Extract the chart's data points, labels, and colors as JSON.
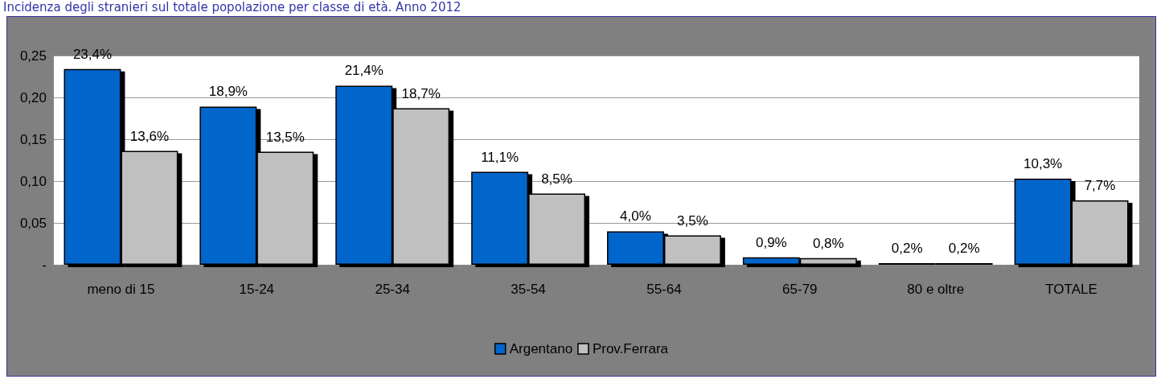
{
  "chart_data": {
    "type": "bar",
    "title": "Incidenza degli stranieri sul totale popolazione per classe di età. Anno 2012",
    "categories": [
      "meno di 15",
      "15-24",
      "25-34",
      "35-54",
      "55-64",
      "65-79",
      "80 e oltre",
      "TOTALE"
    ],
    "series": [
      {
        "name": "Argentano",
        "color": "#0066cc",
        "values": [
          0.234,
          0.189,
          0.214,
          0.111,
          0.04,
          0.009,
          0.002,
          0.103
        ],
        "value_labels": [
          "23,4%",
          "18,9%",
          "21,4%",
          "11,1%",
          "4,0%",
          "0,9%",
          "0,2%",
          "10,3%"
        ]
      },
      {
        "name": "Prov.Ferrara",
        "color": "#c0c0c0",
        "values": [
          0.136,
          0.135,
          0.187,
          0.085,
          0.035,
          0.008,
          0.002,
          0.077
        ],
        "value_labels": [
          "13,6%",
          "13,5%",
          "18,7%",
          "8,5%",
          "3,5%",
          "0,8%",
          "0,2%",
          "7,7%"
        ]
      }
    ],
    "ylim": [
      0,
      0.25
    ],
    "yticks": [
      {
        "value": 0,
        "label": "-"
      },
      {
        "value": 0.05,
        "label": "0,05"
      },
      {
        "value": 0.1,
        "label": "0,10"
      },
      {
        "value": 0.15,
        "label": "0,15"
      },
      {
        "value": 0.2,
        "label": "0,20"
      },
      {
        "value": 0.25,
        "label": "0,25"
      }
    ],
    "grid": "y",
    "legend": "bottom"
  }
}
